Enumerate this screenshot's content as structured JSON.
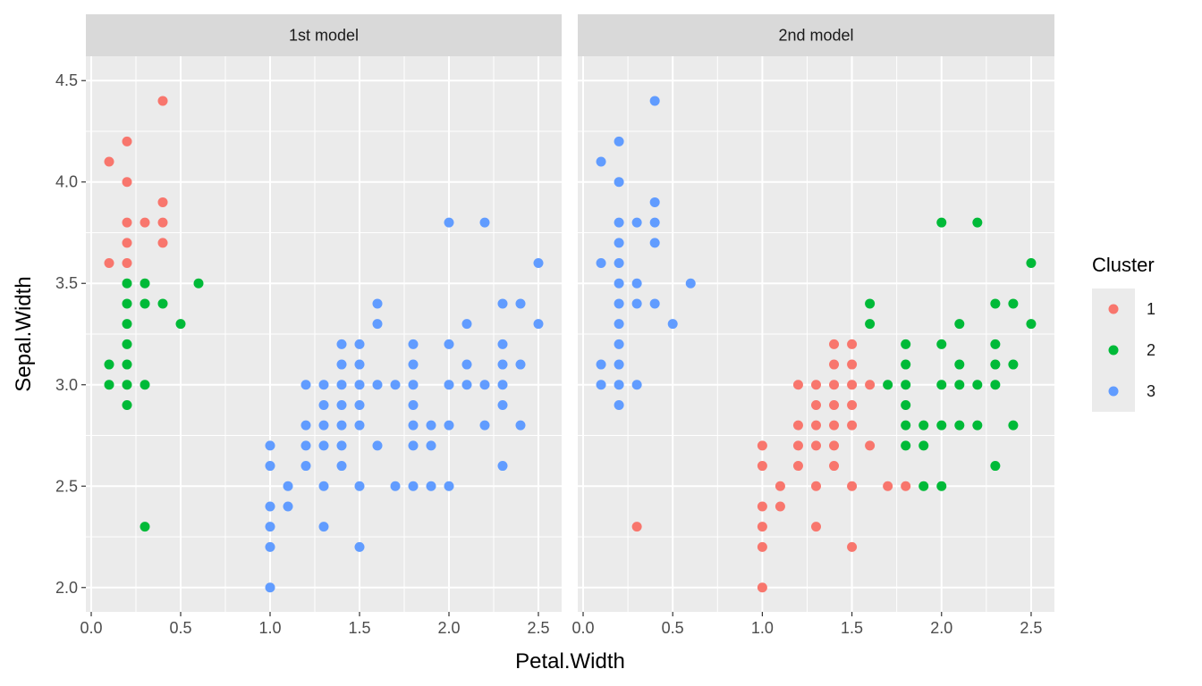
{
  "chart_data": {
    "type": "scatter",
    "xlabel": "Petal.Width",
    "ylabel": "Sepal.Width",
    "xlim": [
      -0.03,
      2.63
    ],
    "ylim": [
      1.88,
      4.62
    ],
    "x_ticks": [
      0.0,
      0.5,
      1.0,
      1.5,
      2.0,
      2.5
    ],
    "x_tick_labels": [
      "0.0",
      "0.5",
      "1.0",
      "1.5",
      "2.0",
      "2.5"
    ],
    "y_ticks": [
      2.0,
      2.5,
      3.0,
      3.5,
      4.0,
      4.5
    ],
    "y_tick_labels": [
      "2.0",
      "2.5",
      "3.0",
      "3.5",
      "4.0",
      "4.5"
    ],
    "grid": true,
    "legend": {
      "title": "Cluster",
      "position": "right",
      "entries": [
        {
          "label": "1",
          "color": "#F8766D"
        },
        {
          "label": "2",
          "color": "#00BA38"
        },
        {
          "label": "3",
          "color": "#619CFF"
        }
      ]
    },
    "panels": [
      {
        "title": "1st model",
        "points": [
          {
            "x": 0.4,
            "y": 4.4,
            "cluster": 1
          },
          {
            "x": 0.2,
            "y": 4.2,
            "cluster": 1
          },
          {
            "x": 0.1,
            "y": 4.1,
            "cluster": 1
          },
          {
            "x": 0.2,
            "y": 4.0,
            "cluster": 1
          },
          {
            "x": 0.4,
            "y": 3.9,
            "cluster": 1
          },
          {
            "x": 0.2,
            "y": 3.8,
            "cluster": 1
          },
          {
            "x": 0.3,
            "y": 3.8,
            "cluster": 1
          },
          {
            "x": 0.4,
            "y": 3.8,
            "cluster": 1
          },
          {
            "x": 0.2,
            "y": 3.7,
            "cluster": 1
          },
          {
            "x": 0.4,
            "y": 3.7,
            "cluster": 1
          },
          {
            "x": 0.1,
            "y": 3.6,
            "cluster": 1
          },
          {
            "x": 0.2,
            "y": 3.6,
            "cluster": 1
          },
          {
            "x": 0.2,
            "y": 3.5,
            "cluster": 2
          },
          {
            "x": 0.3,
            "y": 3.5,
            "cluster": 2
          },
          {
            "x": 0.6,
            "y": 3.5,
            "cluster": 2
          },
          {
            "x": 0.2,
            "y": 3.4,
            "cluster": 2
          },
          {
            "x": 0.3,
            "y": 3.4,
            "cluster": 2
          },
          {
            "x": 0.4,
            "y": 3.4,
            "cluster": 2
          },
          {
            "x": 0.2,
            "y": 3.3,
            "cluster": 2
          },
          {
            "x": 0.5,
            "y": 3.3,
            "cluster": 2
          },
          {
            "x": 0.2,
            "y": 3.2,
            "cluster": 2
          },
          {
            "x": 0.1,
            "y": 3.1,
            "cluster": 2
          },
          {
            "x": 0.2,
            "y": 3.1,
            "cluster": 2
          },
          {
            "x": 0.1,
            "y": 3.0,
            "cluster": 2
          },
          {
            "x": 0.2,
            "y": 3.0,
            "cluster": 2
          },
          {
            "x": 0.3,
            "y": 3.0,
            "cluster": 2
          },
          {
            "x": 0.2,
            "y": 2.9,
            "cluster": 2
          },
          {
            "x": 0.3,
            "y": 2.3,
            "cluster": 2
          },
          {
            "x": 2.0,
            "y": 3.8,
            "cluster": 3
          },
          {
            "x": 2.2,
            "y": 3.8,
            "cluster": 3
          },
          {
            "x": 2.5,
            "y": 3.6,
            "cluster": 3
          },
          {
            "x": 1.6,
            "y": 3.4,
            "cluster": 3
          },
          {
            "x": 2.3,
            "y": 3.4,
            "cluster": 3
          },
          {
            "x": 2.4,
            "y": 3.4,
            "cluster": 3
          },
          {
            "x": 1.6,
            "y": 3.3,
            "cluster": 3
          },
          {
            "x": 2.1,
            "y": 3.3,
            "cluster": 3
          },
          {
            "x": 2.5,
            "y": 3.3,
            "cluster": 3
          },
          {
            "x": 1.4,
            "y": 3.2,
            "cluster": 3
          },
          {
            "x": 1.5,
            "y": 3.2,
            "cluster": 3
          },
          {
            "x": 1.8,
            "y": 3.2,
            "cluster": 3
          },
          {
            "x": 2.0,
            "y": 3.2,
            "cluster": 3
          },
          {
            "x": 2.3,
            "y": 3.2,
            "cluster": 3
          },
          {
            "x": 1.4,
            "y": 3.1,
            "cluster": 3
          },
          {
            "x": 1.5,
            "y": 3.1,
            "cluster": 3
          },
          {
            "x": 1.8,
            "y": 3.1,
            "cluster": 3
          },
          {
            "x": 2.1,
            "y": 3.1,
            "cluster": 3
          },
          {
            "x": 2.3,
            "y": 3.1,
            "cluster": 3
          },
          {
            "x": 2.4,
            "y": 3.1,
            "cluster": 3
          },
          {
            "x": 1.2,
            "y": 3.0,
            "cluster": 3
          },
          {
            "x": 1.3,
            "y": 3.0,
            "cluster": 3
          },
          {
            "x": 1.4,
            "y": 3.0,
            "cluster": 3
          },
          {
            "x": 1.5,
            "y": 3.0,
            "cluster": 3
          },
          {
            "x": 1.6,
            "y": 3.0,
            "cluster": 3
          },
          {
            "x": 1.7,
            "y": 3.0,
            "cluster": 3
          },
          {
            "x": 1.8,
            "y": 3.0,
            "cluster": 3
          },
          {
            "x": 2.0,
            "y": 3.0,
            "cluster": 3
          },
          {
            "x": 2.1,
            "y": 3.0,
            "cluster": 3
          },
          {
            "x": 2.2,
            "y": 3.0,
            "cluster": 3
          },
          {
            "x": 2.3,
            "y": 3.0,
            "cluster": 3
          },
          {
            "x": 1.3,
            "y": 2.9,
            "cluster": 3
          },
          {
            "x": 1.4,
            "y": 2.9,
            "cluster": 3
          },
          {
            "x": 1.5,
            "y": 2.9,
            "cluster": 3
          },
          {
            "x": 1.8,
            "y": 2.9,
            "cluster": 3
          },
          {
            "x": 2.3,
            "y": 2.9,
            "cluster": 3
          },
          {
            "x": 1.2,
            "y": 2.8,
            "cluster": 3
          },
          {
            "x": 1.3,
            "y": 2.8,
            "cluster": 3
          },
          {
            "x": 1.4,
            "y": 2.8,
            "cluster": 3
          },
          {
            "x": 1.5,
            "y": 2.8,
            "cluster": 3
          },
          {
            "x": 1.8,
            "y": 2.8,
            "cluster": 3
          },
          {
            "x": 1.9,
            "y": 2.8,
            "cluster": 3
          },
          {
            "x": 2.0,
            "y": 2.8,
            "cluster": 3
          },
          {
            "x": 2.2,
            "y": 2.8,
            "cluster": 3
          },
          {
            "x": 2.4,
            "y": 2.8,
            "cluster": 3
          },
          {
            "x": 1.0,
            "y": 2.7,
            "cluster": 3
          },
          {
            "x": 1.2,
            "y": 2.7,
            "cluster": 3
          },
          {
            "x": 1.3,
            "y": 2.7,
            "cluster": 3
          },
          {
            "x": 1.4,
            "y": 2.7,
            "cluster": 3
          },
          {
            "x": 1.6,
            "y": 2.7,
            "cluster": 3
          },
          {
            "x": 1.8,
            "y": 2.7,
            "cluster": 3
          },
          {
            "x": 1.9,
            "y": 2.7,
            "cluster": 3
          },
          {
            "x": 1.0,
            "y": 2.6,
            "cluster": 3
          },
          {
            "x": 1.2,
            "y": 2.6,
            "cluster": 3
          },
          {
            "x": 1.4,
            "y": 2.6,
            "cluster": 3
          },
          {
            "x": 2.3,
            "y": 2.6,
            "cluster": 3
          },
          {
            "x": 1.1,
            "y": 2.5,
            "cluster": 3
          },
          {
            "x": 1.3,
            "y": 2.5,
            "cluster": 3
          },
          {
            "x": 1.5,
            "y": 2.5,
            "cluster": 3
          },
          {
            "x": 1.7,
            "y": 2.5,
            "cluster": 3
          },
          {
            "x": 1.8,
            "y": 2.5,
            "cluster": 3
          },
          {
            "x": 1.9,
            "y": 2.5,
            "cluster": 3
          },
          {
            "x": 2.0,
            "y": 2.5,
            "cluster": 3
          },
          {
            "x": 1.0,
            "y": 2.4,
            "cluster": 3
          },
          {
            "x": 1.1,
            "y": 2.4,
            "cluster": 3
          },
          {
            "x": 1.0,
            "y": 2.3,
            "cluster": 3
          },
          {
            "x": 1.3,
            "y": 2.3,
            "cluster": 3
          },
          {
            "x": 1.0,
            "y": 2.2,
            "cluster": 3
          },
          {
            "x": 1.5,
            "y": 2.2,
            "cluster": 3
          },
          {
            "x": 1.0,
            "y": 2.0,
            "cluster": 3
          }
        ]
      },
      {
        "title": "2nd model",
        "points": [
          {
            "x": 0.4,
            "y": 4.4,
            "cluster": 3
          },
          {
            "x": 0.2,
            "y": 4.2,
            "cluster": 3
          },
          {
            "x": 0.1,
            "y": 4.1,
            "cluster": 3
          },
          {
            "x": 0.2,
            "y": 4.0,
            "cluster": 3
          },
          {
            "x": 0.4,
            "y": 3.9,
            "cluster": 3
          },
          {
            "x": 0.2,
            "y": 3.8,
            "cluster": 3
          },
          {
            "x": 0.3,
            "y": 3.8,
            "cluster": 3
          },
          {
            "x": 0.4,
            "y": 3.8,
            "cluster": 3
          },
          {
            "x": 0.2,
            "y": 3.7,
            "cluster": 3
          },
          {
            "x": 0.4,
            "y": 3.7,
            "cluster": 3
          },
          {
            "x": 0.1,
            "y": 3.6,
            "cluster": 3
          },
          {
            "x": 0.2,
            "y": 3.6,
            "cluster": 3
          },
          {
            "x": 0.2,
            "y": 3.5,
            "cluster": 3
          },
          {
            "x": 0.3,
            "y": 3.5,
            "cluster": 3
          },
          {
            "x": 0.6,
            "y": 3.5,
            "cluster": 3
          },
          {
            "x": 0.2,
            "y": 3.4,
            "cluster": 3
          },
          {
            "x": 0.3,
            "y": 3.4,
            "cluster": 3
          },
          {
            "x": 0.4,
            "y": 3.4,
            "cluster": 3
          },
          {
            "x": 0.2,
            "y": 3.3,
            "cluster": 3
          },
          {
            "x": 0.5,
            "y": 3.3,
            "cluster": 3
          },
          {
            "x": 0.2,
            "y": 3.2,
            "cluster": 3
          },
          {
            "x": 0.1,
            "y": 3.1,
            "cluster": 3
          },
          {
            "x": 0.2,
            "y": 3.1,
            "cluster": 3
          },
          {
            "x": 0.1,
            "y": 3.0,
            "cluster": 3
          },
          {
            "x": 0.2,
            "y": 3.0,
            "cluster": 3
          },
          {
            "x": 0.3,
            "y": 3.0,
            "cluster": 3
          },
          {
            "x": 0.2,
            "y": 2.9,
            "cluster": 3
          },
          {
            "x": 0.3,
            "y": 2.3,
            "cluster": 1
          },
          {
            "x": 1.4,
            "y": 3.2,
            "cluster": 1
          },
          {
            "x": 1.5,
            "y": 3.2,
            "cluster": 1
          },
          {
            "x": 1.4,
            "y": 3.1,
            "cluster": 1
          },
          {
            "x": 1.5,
            "y": 3.1,
            "cluster": 1
          },
          {
            "x": 1.2,
            "y": 3.0,
            "cluster": 1
          },
          {
            "x": 1.3,
            "y": 3.0,
            "cluster": 1
          },
          {
            "x": 1.4,
            "y": 3.0,
            "cluster": 1
          },
          {
            "x": 1.5,
            "y": 3.0,
            "cluster": 1
          },
          {
            "x": 1.6,
            "y": 3.0,
            "cluster": 1
          },
          {
            "x": 1.3,
            "y": 2.9,
            "cluster": 1
          },
          {
            "x": 1.4,
            "y": 2.9,
            "cluster": 1
          },
          {
            "x": 1.5,
            "y": 2.9,
            "cluster": 1
          },
          {
            "x": 1.2,
            "y": 2.8,
            "cluster": 1
          },
          {
            "x": 1.3,
            "y": 2.8,
            "cluster": 1
          },
          {
            "x": 1.4,
            "y": 2.8,
            "cluster": 1
          },
          {
            "x": 1.5,
            "y": 2.8,
            "cluster": 1
          },
          {
            "x": 1.0,
            "y": 2.7,
            "cluster": 1
          },
          {
            "x": 1.2,
            "y": 2.7,
            "cluster": 1
          },
          {
            "x": 1.3,
            "y": 2.7,
            "cluster": 1
          },
          {
            "x": 1.4,
            "y": 2.7,
            "cluster": 1
          },
          {
            "x": 1.6,
            "y": 2.7,
            "cluster": 1
          },
          {
            "x": 1.0,
            "y": 2.6,
            "cluster": 1
          },
          {
            "x": 1.2,
            "y": 2.6,
            "cluster": 1
          },
          {
            "x": 1.4,
            "y": 2.6,
            "cluster": 1
          },
          {
            "x": 1.1,
            "y": 2.5,
            "cluster": 1
          },
          {
            "x": 1.3,
            "y": 2.5,
            "cluster": 1
          },
          {
            "x": 1.5,
            "y": 2.5,
            "cluster": 1
          },
          {
            "x": 1.7,
            "y": 2.5,
            "cluster": 1
          },
          {
            "x": 1.8,
            "y": 2.5,
            "cluster": 1
          },
          {
            "x": 1.0,
            "y": 2.4,
            "cluster": 1
          },
          {
            "x": 1.1,
            "y": 2.4,
            "cluster": 1
          },
          {
            "x": 1.0,
            "y": 2.3,
            "cluster": 1
          },
          {
            "x": 1.3,
            "y": 2.3,
            "cluster": 1
          },
          {
            "x": 1.0,
            "y": 2.2,
            "cluster": 1
          },
          {
            "x": 1.5,
            "y": 2.2,
            "cluster": 1
          },
          {
            "x": 1.0,
            "y": 2.0,
            "cluster": 1
          },
          {
            "x": 2.0,
            "y": 3.8,
            "cluster": 2
          },
          {
            "x": 2.2,
            "y": 3.8,
            "cluster": 2
          },
          {
            "x": 2.5,
            "y": 3.6,
            "cluster": 2
          },
          {
            "x": 1.6,
            "y": 3.4,
            "cluster": 2
          },
          {
            "x": 2.3,
            "y": 3.4,
            "cluster": 2
          },
          {
            "x": 2.4,
            "y": 3.4,
            "cluster": 2
          },
          {
            "x": 1.6,
            "y": 3.3,
            "cluster": 2
          },
          {
            "x": 2.1,
            "y": 3.3,
            "cluster": 2
          },
          {
            "x": 2.5,
            "y": 3.3,
            "cluster": 2
          },
          {
            "x": 1.8,
            "y": 3.2,
            "cluster": 2
          },
          {
            "x": 2.0,
            "y": 3.2,
            "cluster": 2
          },
          {
            "x": 2.3,
            "y": 3.2,
            "cluster": 2
          },
          {
            "x": 1.8,
            "y": 3.1,
            "cluster": 2
          },
          {
            "x": 2.1,
            "y": 3.1,
            "cluster": 2
          },
          {
            "x": 2.3,
            "y": 3.1,
            "cluster": 2
          },
          {
            "x": 2.4,
            "y": 3.1,
            "cluster": 2
          },
          {
            "x": 1.7,
            "y": 3.0,
            "cluster": 2
          },
          {
            "x": 1.8,
            "y": 3.0,
            "cluster": 2
          },
          {
            "x": 2.0,
            "y": 3.0,
            "cluster": 2
          },
          {
            "x": 2.1,
            "y": 3.0,
            "cluster": 2
          },
          {
            "x": 2.2,
            "y": 3.0,
            "cluster": 2
          },
          {
            "x": 2.3,
            "y": 3.0,
            "cluster": 2
          },
          {
            "x": 1.8,
            "y": 2.9,
            "cluster": 2
          },
          {
            "x": 1.8,
            "y": 2.8,
            "cluster": 2
          },
          {
            "x": 1.9,
            "y": 2.8,
            "cluster": 2
          },
          {
            "x": 2.0,
            "y": 2.8,
            "cluster": 2
          },
          {
            "x": 2.1,
            "y": 2.8,
            "cluster": 2
          },
          {
            "x": 2.2,
            "y": 2.8,
            "cluster": 2
          },
          {
            "x": 2.4,
            "y": 2.8,
            "cluster": 2
          },
          {
            "x": 1.8,
            "y": 2.7,
            "cluster": 2
          },
          {
            "x": 1.9,
            "y": 2.7,
            "cluster": 2
          },
          {
            "x": 2.3,
            "y": 2.6,
            "cluster": 2
          },
          {
            "x": 1.9,
            "y": 2.5,
            "cluster": 2
          },
          {
            "x": 2.0,
            "y": 2.5,
            "cluster": 2
          }
        ]
      }
    ]
  }
}
